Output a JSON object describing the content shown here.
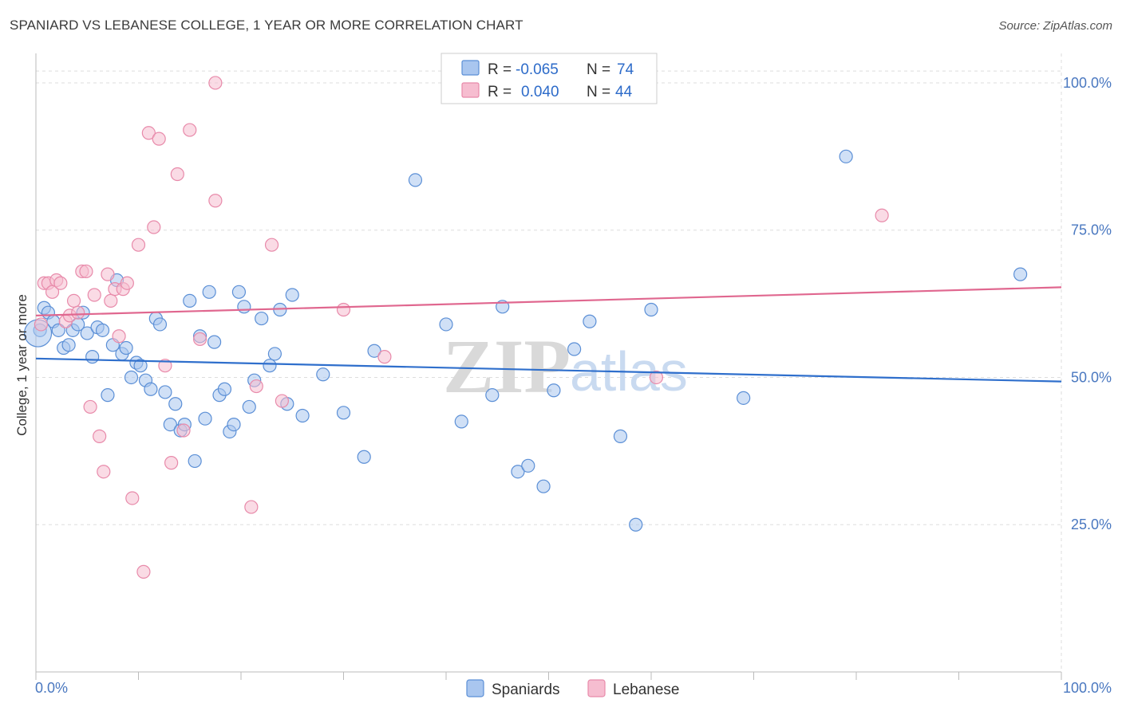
{
  "title": "SPANIARD VS LEBANESE COLLEGE, 1 YEAR OR MORE CORRELATION CHART",
  "source": "Source: ZipAtlas.com",
  "watermark": {
    "part1": "ZIP",
    "part2": "atlas"
  },
  "legend_box": {
    "row1": {
      "r_label": "R =",
      "r_value": "-0.065",
      "n_label": "N =",
      "n_value": "74"
    },
    "row2": {
      "r_label": "R =",
      "r_value": "0.040",
      "n_label": "N =",
      "n_value": "44"
    }
  },
  "colors": {
    "spaniards_fill": "#a9c6ef",
    "spaniards_stroke": "#5b8fd6",
    "spaniards_line": "#2f6fcc",
    "lebanese_fill": "#f6bdd0",
    "lebanese_stroke": "#e88aaa",
    "lebanese_line": "#e0678f",
    "axis_text": "#4a78c0",
    "grid": "#dddddd"
  },
  "chart_data": {
    "type": "scatter",
    "title": "SPANIARD VS LEBANESE COLLEGE, 1 YEAR OR MORE CORRELATION CHART",
    "xlabel": "",
    "ylabel": "College, 1 year or more",
    "xlim": [
      0,
      100
    ],
    "ylim": [
      0,
      105
    ],
    "x_tick_labels": [
      "0.0%",
      "100.0%"
    ],
    "y_ticks": [
      25,
      50,
      75,
      100
    ],
    "y_tick_labels": [
      "25.0%",
      "50.0%",
      "75.0%",
      "100.0%"
    ],
    "grid": true,
    "legend_position": "bottom",
    "series": [
      {
        "name": "Spaniards",
        "r": -0.065,
        "n": 74,
        "trend": {
          "x": [
            0,
            100
          ],
          "y": [
            53.2,
            49.3
          ]
        },
        "points": [
          [
            0.4,
            58.0
          ],
          [
            0.8,
            61.8
          ],
          [
            1.2,
            61.0
          ],
          [
            1.7,
            59.5
          ],
          [
            2.2,
            58.0
          ],
          [
            2.7,
            55.0
          ],
          [
            3.2,
            55.5
          ],
          [
            3.6,
            58.0
          ],
          [
            4.1,
            59.0
          ],
          [
            4.6,
            61.0
          ],
          [
            5.0,
            57.5
          ],
          [
            5.5,
            53.5
          ],
          [
            6.0,
            58.5
          ],
          [
            6.5,
            58.0
          ],
          [
            7.0,
            47.0
          ],
          [
            7.5,
            55.5
          ],
          [
            7.9,
            66.5
          ],
          [
            8.4,
            54.0
          ],
          [
            8.8,
            55.0
          ],
          [
            9.3,
            50.0
          ],
          [
            9.8,
            52.5
          ],
          [
            10.2,
            52.0
          ],
          [
            10.7,
            49.5
          ],
          [
            11.2,
            48.0
          ],
          [
            11.7,
            60.0
          ],
          [
            12.1,
            59.0
          ],
          [
            12.6,
            47.5
          ],
          [
            13.1,
            42.0
          ],
          [
            13.6,
            45.5
          ],
          [
            14.1,
            41.0
          ],
          [
            14.5,
            42.0
          ],
          [
            15.0,
            63.0
          ],
          [
            15.5,
            35.8
          ],
          [
            16.0,
            57.0
          ],
          [
            16.5,
            43.0
          ],
          [
            16.9,
            64.5
          ],
          [
            17.4,
            56.0
          ],
          [
            17.9,
            47.0
          ],
          [
            18.4,
            48.0
          ],
          [
            18.9,
            40.8
          ],
          [
            19.3,
            42.0
          ],
          [
            19.8,
            64.5
          ],
          [
            20.3,
            62.0
          ],
          [
            20.8,
            45.0
          ],
          [
            21.3,
            49.5
          ],
          [
            22.0,
            60.0
          ],
          [
            22.8,
            52.0
          ],
          [
            23.3,
            54.0
          ],
          [
            23.8,
            61.5
          ],
          [
            24.5,
            45.5
          ],
          [
            25.0,
            64.0
          ],
          [
            26.0,
            43.5
          ],
          [
            28.0,
            50.5
          ],
          [
            30.0,
            44.0
          ],
          [
            32.0,
            36.5
          ],
          [
            33.0,
            54.5
          ],
          [
            37.0,
            83.5
          ],
          [
            40.0,
            59.0
          ],
          [
            41.5,
            42.5
          ],
          [
            44.5,
            47.0
          ],
          [
            45.5,
            62.0
          ],
          [
            47.0,
            34.0
          ],
          [
            48.0,
            35.0
          ],
          [
            49.5,
            31.5
          ],
          [
            50.5,
            47.8
          ],
          [
            52.5,
            54.8
          ],
          [
            54.0,
            59.5
          ],
          [
            57.0,
            40.0
          ],
          [
            58.5,
            25.0
          ],
          [
            60.0,
            61.5
          ],
          [
            69.0,
            46.5
          ],
          [
            79.0,
            87.5
          ],
          [
            96.0,
            67.5
          ],
          [
            0.2,
            57.5
          ]
        ]
      },
      {
        "name": "Lebanese",
        "r": 0.04,
        "n": 44,
        "trend": {
          "x": [
            0,
            100
          ],
          "y": [
            60.5,
            65.3
          ]
        },
        "points": [
          [
            0.5,
            59.0
          ],
          [
            0.8,
            66.0
          ],
          [
            1.2,
            66.0
          ],
          [
            1.6,
            64.5
          ],
          [
            2.0,
            66.5
          ],
          [
            2.4,
            66.0
          ],
          [
            2.9,
            59.5
          ],
          [
            3.3,
            60.5
          ],
          [
            3.7,
            63.0
          ],
          [
            4.1,
            61.0
          ],
          [
            4.5,
            68.0
          ],
          [
            4.9,
            68.0
          ],
          [
            5.3,
            45.0
          ],
          [
            5.7,
            64.0
          ],
          [
            6.2,
            40.0
          ],
          [
            6.6,
            34.0
          ],
          [
            7.0,
            67.5
          ],
          [
            7.3,
            63.0
          ],
          [
            7.7,
            65.0
          ],
          [
            8.1,
            57.0
          ],
          [
            8.5,
            65.0
          ],
          [
            8.9,
            66.0
          ],
          [
            9.4,
            29.5
          ],
          [
            10.0,
            72.5
          ],
          [
            10.5,
            17.0
          ],
          [
            11.0,
            91.5
          ],
          [
            11.5,
            75.5
          ],
          [
            12.0,
            90.5
          ],
          [
            12.6,
            52.0
          ],
          [
            13.2,
            35.5
          ],
          [
            13.8,
            84.5
          ],
          [
            14.4,
            41.0
          ],
          [
            15.0,
            92.0
          ],
          [
            16.0,
            56.5
          ],
          [
            17.5,
            80.0
          ],
          [
            17.5,
            100.0
          ],
          [
            21.0,
            28.0
          ],
          [
            21.5,
            48.5
          ],
          [
            23.0,
            72.5
          ],
          [
            24.0,
            46.0
          ],
          [
            30.0,
            61.5
          ],
          [
            34.0,
            53.5
          ],
          [
            60.5,
            50.0
          ],
          [
            82.5,
            77.5
          ]
        ]
      }
    ]
  }
}
